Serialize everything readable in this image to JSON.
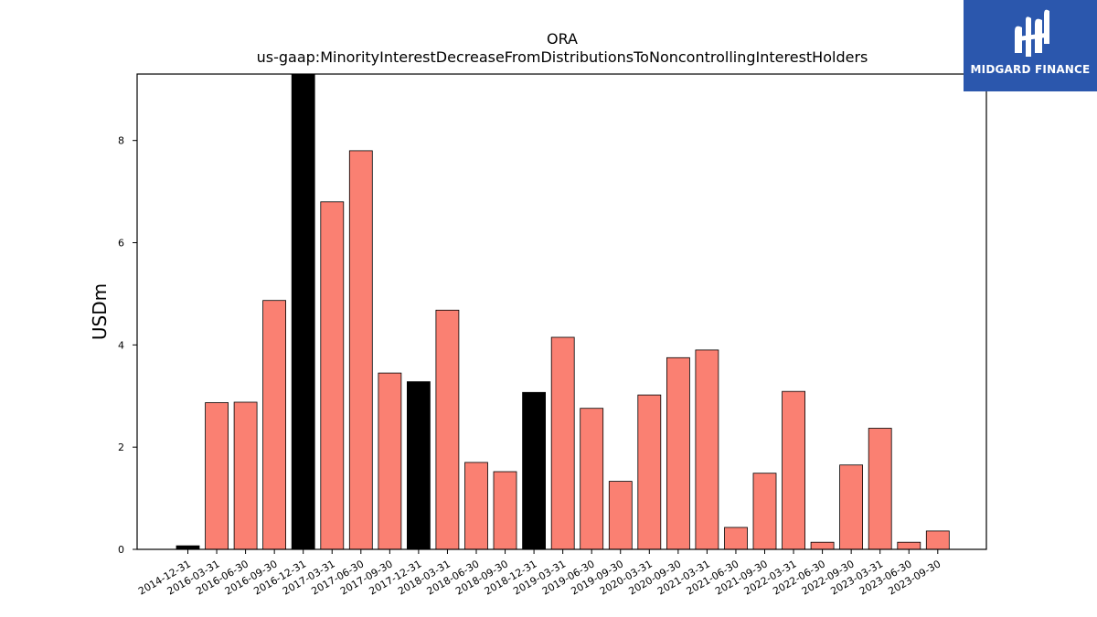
{
  "brand": {
    "name": "MIDGARD FINANCE",
    "bg_color": "#2b57ad",
    "icon": "midgard-logo-icon"
  },
  "chart_data": {
    "type": "bar",
    "title": "ORA",
    "subtitle": "us-gaap:MinorityInterestDecreaseFromDistributionsToNoncontrollingInterestHolders",
    "xlabel": "",
    "ylabel": "USDm",
    "ylim": [
      0,
      9.3
    ],
    "yticks": [
      "0",
      "2",
      "4",
      "6",
      "8"
    ],
    "grid": false,
    "categories": [
      "2014-12-31",
      "2016-03-31",
      "2016-06-30",
      "2016-09-30",
      "2016-12-31",
      "2017-03-31",
      "2017-06-30",
      "2017-09-30",
      "2017-12-31",
      "2018-03-31",
      "2018-06-30",
      "2018-09-30",
      "2018-12-31",
      "2019-03-31",
      "2019-06-30",
      "2019-09-30",
      "2020-03-31",
      "2020-09-30",
      "2021-03-31",
      "2021-06-30",
      "2021-09-30",
      "2022-03-31",
      "2022-06-30",
      "2022-09-30",
      "2023-03-31",
      "2023-06-30",
      "2023-09-30"
    ],
    "values": [
      0.07,
      2.87,
      2.88,
      4.87,
      9.3,
      6.8,
      7.8,
      3.45,
      3.28,
      4.68,
      1.7,
      1.52,
      3.07,
      4.15,
      2.76,
      1.33,
      3.02,
      3.75,
      3.9,
      0.43,
      1.49,
      3.09,
      0.14,
      1.65,
      2.37,
      0.14,
      0.36
    ],
    "bar_colors": [
      "#000000",
      "#fa8072",
      "#fa8072",
      "#fa8072",
      "#000000",
      "#fa8072",
      "#fa8072",
      "#fa8072",
      "#000000",
      "#fa8072",
      "#fa8072",
      "#fa8072",
      "#000000",
      "#fa8072",
      "#fa8072",
      "#fa8072",
      "#fa8072",
      "#fa8072",
      "#fa8072",
      "#fa8072",
      "#fa8072",
      "#fa8072",
      "#fa8072",
      "#fa8072",
      "#fa8072",
      "#fa8072",
      "#fa8072"
    ]
  }
}
